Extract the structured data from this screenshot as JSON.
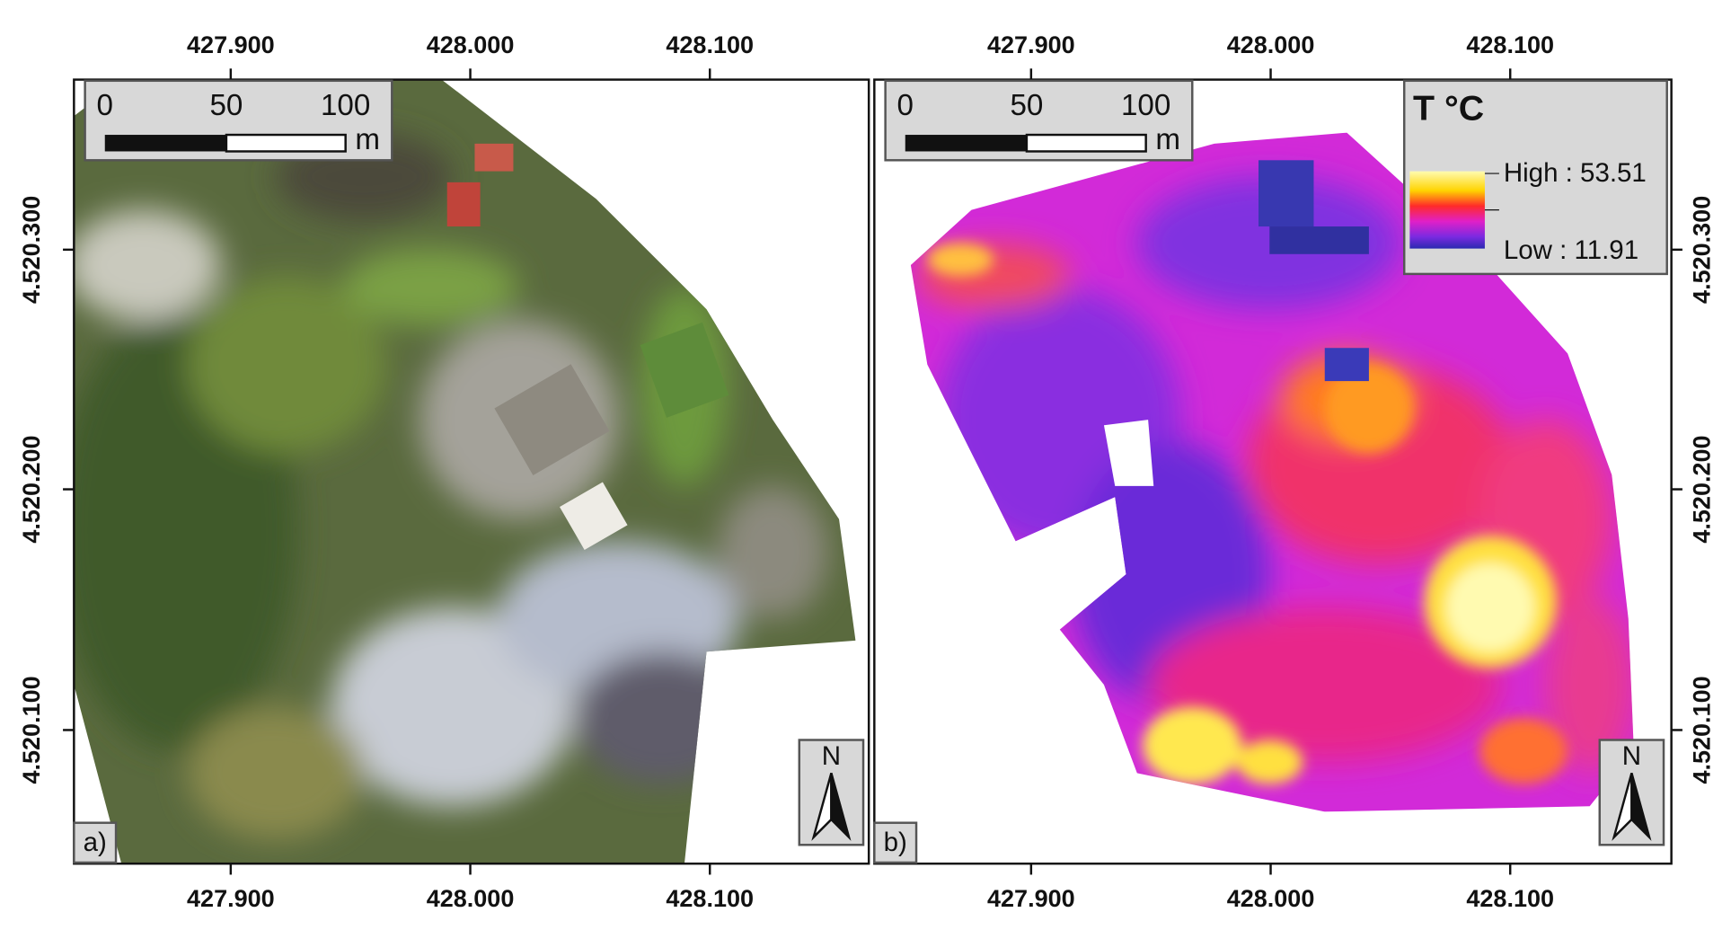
{
  "x_ticks": [
    "427.900",
    "428.000",
    "428.100"
  ],
  "y_ticks": [
    "4.520.300",
    "4.520.200",
    "4.520.100"
  ],
  "panels": [
    {
      "label": "a)",
      "scale_bar": {
        "ticks": [
          "0",
          "50",
          "100"
        ],
        "unit": "m"
      },
      "north": "N"
    },
    {
      "label": "b)",
      "scale_bar": {
        "ticks": [
          "0",
          "50",
          "100"
        ],
        "unit": "m"
      },
      "north": "N",
      "legend": {
        "title": "T °C",
        "high": "High : 53.51",
        "low": "Low : 11.91"
      }
    }
  ]
}
